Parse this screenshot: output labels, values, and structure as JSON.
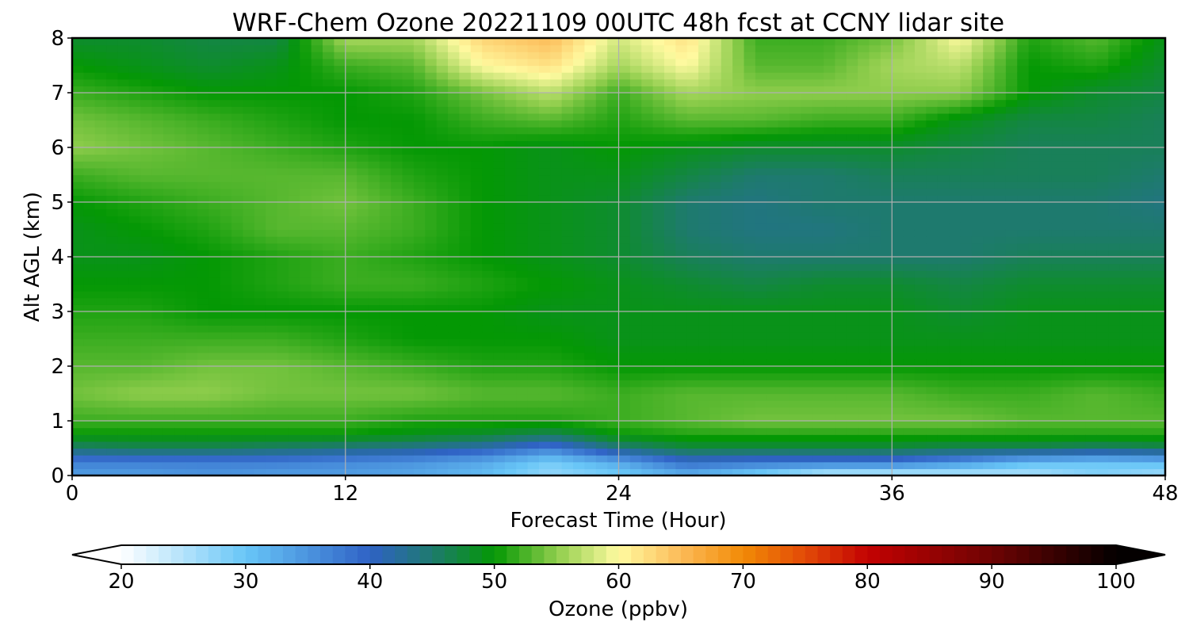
{
  "chart_data": {
    "type": "heatmap",
    "title": "WRF-Chem Ozone  20221109 00UTC 48h fcst at CCNY lidar site",
    "xlabel": "Forecast Time (Hour)",
    "ylabel": "Alt AGL (km)",
    "xlim": [
      0,
      48
    ],
    "ylim": [
      0,
      8
    ],
    "x_ticks": [
      0,
      12,
      24,
      36,
      48
    ],
    "y_ticks": [
      0,
      1,
      2,
      3,
      4,
      5,
      6,
      7,
      8
    ],
    "grid": true,
    "x": [
      0,
      3,
      6,
      9,
      12,
      15,
      18,
      21,
      24,
      27,
      30,
      33,
      36,
      39,
      42,
      45,
      48
    ],
    "y": [
      0,
      0.25,
      0.5,
      0.75,
      1,
      1.5,
      2,
      2.5,
      3,
      3.5,
      4,
      4.5,
      5,
      5.5,
      6,
      6.5,
      7,
      7.5,
      8
    ],
    "z_units": "ppbv",
    "values": [
      [
        34,
        34,
        35,
        34,
        34,
        33,
        31,
        27,
        29,
        32,
        28,
        23,
        23,
        24,
        25,
        28,
        26
      ],
      [
        37,
        37,
        37,
        37,
        36,
        35,
        33,
        29,
        33,
        39,
        38,
        38,
        38,
        35,
        31,
        30,
        31
      ],
      [
        45,
        46,
        46,
        45,
        44,
        43,
        41,
        37,
        44,
        47,
        47,
        47,
        47,
        46,
        46,
        45,
        46
      ],
      [
        50,
        50,
        50,
        50,
        50,
        49,
        48,
        46,
        50,
        51,
        51,
        51,
        51,
        51,
        51,
        51,
        51
      ],
      [
        52,
        52,
        52,
        52,
        52,
        51,
        51,
        51,
        52,
        53,
        54,
        54,
        54,
        54,
        53,
        53,
        53
      ],
      [
        54,
        55,
        55,
        54,
        54,
        54,
        53,
        53,
        52,
        53,
        53,
        53,
        53,
        52,
        52,
        53,
        52
      ],
      [
        53,
        53,
        54,
        54,
        53,
        52,
        51,
        51,
        50,
        50,
        50,
        50,
        50,
        50,
        50,
        50,
        50
      ],
      [
        52,
        52,
        52,
        52,
        51,
        50,
        50,
        50,
        49,
        49,
        49,
        49,
        49,
        49,
        49,
        49,
        49
      ],
      [
        51,
        51,
        50,
        50,
        50,
        50,
        50,
        49,
        49,
        49,
        49,
        49,
        49,
        48,
        49,
        49,
        49
      ],
      [
        50,
        50,
        50,
        51,
        52,
        52,
        51,
        50,
        49,
        48,
        47,
        48,
        48,
        47,
        48,
        48,
        48
      ],
      [
        49,
        49,
        50,
        51,
        52,
        51,
        50,
        49,
        48,
        46,
        45,
        45,
        45,
        45,
        46,
        46,
        46
      ],
      [
        49,
        50,
        51,
        53,
        53,
        52,
        50,
        49,
        48,
        45,
        44,
        44,
        45,
        45,
        45,
        45,
        45
      ],
      [
        50,
        51,
        52,
        53,
        54,
        52,
        50,
        49,
        48,
        45,
        44,
        45,
        45,
        45,
        45,
        45,
        44
      ],
      [
        52,
        53,
        53,
        53,
        53,
        51,
        50,
        49,
        49,
        47,
        45,
        45,
        46,
        46,
        46,
        46,
        45
      ],
      [
        55,
        54,
        53,
        52,
        51,
        50,
        50,
        49,
        50,
        49,
        48,
        48,
        48,
        47,
        46,
        46,
        46
      ],
      [
        54,
        53,
        52,
        51,
        50,
        50,
        52,
        53,
        51,
        53,
        53,
        52,
        52,
        49,
        47,
        47,
        46
      ],
      [
        52,
        51,
        50,
        50,
        50,
        51,
        54,
        57,
        52,
        56,
        55,
        55,
        55,
        55,
        50,
        48,
        47
      ],
      [
        50,
        49,
        48,
        49,
        52,
        53,
        60,
        62,
        56,
        60,
        53,
        53,
        56,
        57,
        50,
        51,
        48
      ],
      [
        48,
        48,
        47,
        47,
        56,
        56,
        63,
        65,
        58,
        62,
        52,
        52,
        54,
        60,
        51,
        53,
        49
      ]
    ],
    "colorbar": {
      "label": "Ozone  (ppbv)",
      "min": 20,
      "max": 100,
      "extend": "both",
      "tick_values": [
        20,
        30,
        40,
        50,
        60,
        70,
        80,
        90,
        100
      ],
      "tick_labels": [
        "20",
        "30",
        "40",
        "50",
        "60",
        "70",
        "80",
        "90",
        "100"
      ],
      "color_stops": [
        {
          "v": 20,
          "c": "#ffffff"
        },
        {
          "v": 30,
          "c": "#68c6f7"
        },
        {
          "v": 40,
          "c": "#2f62c5"
        },
        {
          "v": 45,
          "c": "#1e7a6e"
        },
        {
          "v": 50,
          "c": "#049804"
        },
        {
          "v": 55,
          "c": "#8fcd4c"
        },
        {
          "v": 60,
          "c": "#fffaa0"
        },
        {
          "v": 65,
          "c": "#fcbb58"
        },
        {
          "v": 70,
          "c": "#f28a06"
        },
        {
          "v": 75,
          "c": "#e24a07"
        },
        {
          "v": 80,
          "c": "#c30202"
        },
        {
          "v": 90,
          "c": "#6e0303"
        },
        {
          "v": 100,
          "c": "#040000"
        }
      ]
    }
  }
}
